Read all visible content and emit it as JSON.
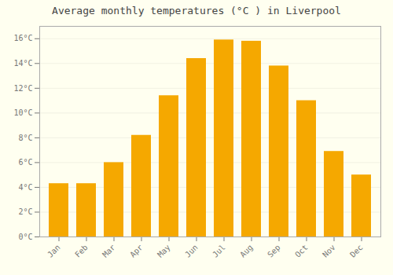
{
  "chart_data": {
    "type": "bar",
    "title": "Average monthly temperatures (°C ) in Liverpool",
    "categories": [
      "Jan",
      "Feb",
      "Mar",
      "Apr",
      "May",
      "Jun",
      "Jul",
      "Aug",
      "Sep",
      "Oct",
      "Nov",
      "Dec"
    ],
    "values": [
      4.3,
      4.3,
      6.0,
      8.2,
      11.4,
      14.4,
      15.9,
      15.8,
      13.8,
      11.0,
      6.9,
      5.0
    ],
    "color": "#F5A800",
    "ylim": [
      0,
      17
    ],
    "yticks": [
      {
        "value": 0,
        "label": "0°C"
      },
      {
        "value": 2,
        "label": "2°C"
      },
      {
        "value": 4,
        "label": "4°C"
      },
      {
        "value": 6,
        "label": "6°C"
      },
      {
        "value": 8,
        "label": "8°C"
      },
      {
        "value": 10,
        "label": "10°C"
      },
      {
        "value": 12,
        "label": "12°C"
      },
      {
        "value": 14,
        "label": "14°C"
      },
      {
        "value": 16,
        "label": "16°C"
      }
    ],
    "grid": true
  }
}
